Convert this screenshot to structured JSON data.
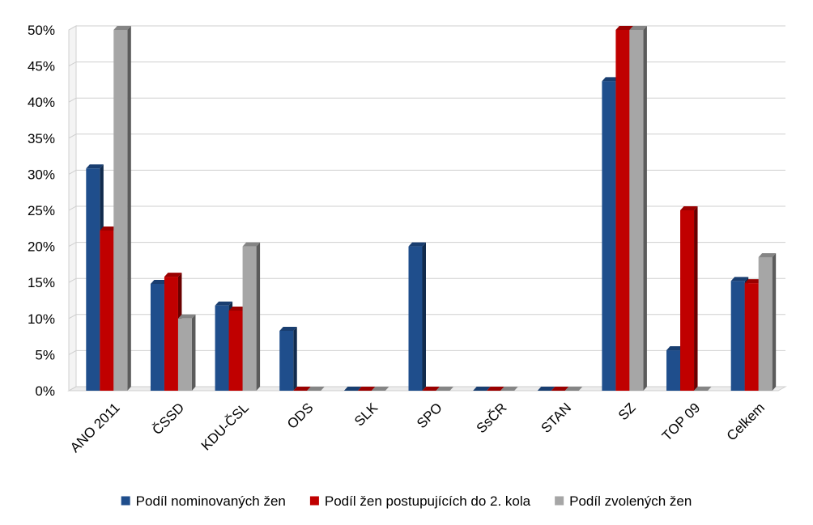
{
  "chart_data": {
    "type": "bar",
    "categories": [
      "ANO 2011",
      "ČSSD",
      "KDU-ČSL",
      "ODS",
      "SLK",
      "SPO",
      "SsČR",
      "STAN",
      "SZ",
      "TOP 09",
      "Celkem"
    ],
    "series": [
      {
        "name": "Podíl nominovaných žen",
        "color": "#1f4e8c",
        "values": [
          30.8,
          14.8,
          11.8,
          8.3,
          0,
          20,
          0,
          0,
          42.9,
          5.6,
          15.2
        ]
      },
      {
        "name": "Podíl žen postupujících do 2. kola",
        "color": "#c00000",
        "values": [
          22.2,
          15.8,
          11.1,
          0,
          0,
          0,
          0,
          0,
          50,
          25,
          14.9
        ]
      },
      {
        "name": "Podíl zvolených žen",
        "color": "#a6a6a6",
        "values": [
          50,
          10,
          20,
          0,
          0,
          0,
          0,
          0,
          50,
          0,
          18.5
        ]
      }
    ],
    "yticks": [
      "0%",
      "5%",
      "10%",
      "15%",
      "20%",
      "25%",
      "30%",
      "35%",
      "40%",
      "45%",
      "50%"
    ],
    "ylim": [
      0,
      50
    ],
    "grid": true,
    "legend_position": "bottom"
  }
}
